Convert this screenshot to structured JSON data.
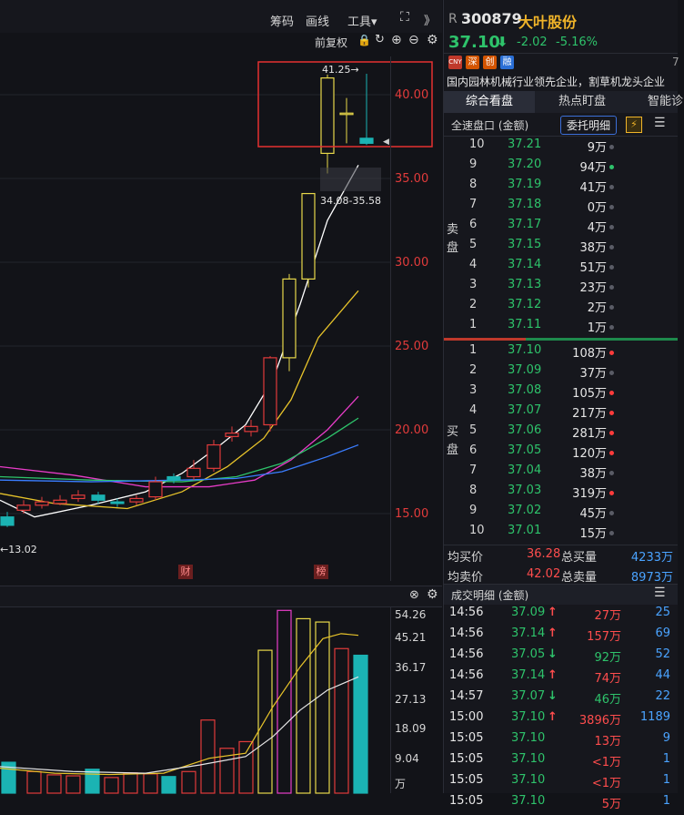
{
  "toolbar": {
    "chips_label": "筹码",
    "draw_label": "画线",
    "tools_label": "工具▾",
    "fullscreen_icon": "expand-icon",
    "collapse_label": "》",
    "adjust_label": "前复权"
  },
  "chart": {
    "price_ticks": [
      "40.00",
      "35.00",
      "30.00",
      "25.00",
      "20.00",
      "15.00"
    ],
    "high_label": "41.25→",
    "range_label": "34.08-35.58",
    "low_label": "←13.02",
    "markers": {
      "fin": "财",
      "list": "榜"
    },
    "colors": {
      "up": "#e8d84a",
      "down": "#1bb3b3",
      "ma5": "#ffffff",
      "ma10": "#e8c42a",
      "ma20": "#e83cc8",
      "ma30": "#2ec36b",
      "ma60": "#3a7dff"
    }
  },
  "volume": {
    "ticks": [
      "54.26",
      "45.21",
      "36.17",
      "27.13",
      "18.09",
      "9.04",
      "万"
    ]
  },
  "stock": {
    "prefix": "R",
    "code": "300879",
    "name": "大叶股份",
    "price": "37.10",
    "change": "-2.02",
    "change_pct": "-5.16%",
    "badges": [
      "CNY",
      "深",
      "创",
      "融"
    ],
    "desc": "国内园林机械行业领先企业，割草机龙头企业",
    "more": "7"
  },
  "tabs": [
    "综合看盘",
    "热点盯盘",
    "智能诊"
  ],
  "orderbook": {
    "title": "全速盘口 (金额)",
    "detail_btn": "委托明细",
    "sell_label_1": "卖",
    "sell_label_2": "盘",
    "buy_label_1": "买",
    "buy_label_2": "盘",
    "sells": [
      {
        "lvl": "10",
        "price": "37.21",
        "vol": "9万",
        "dot": "grey"
      },
      {
        "lvl": "9",
        "price": "37.20",
        "vol": "94万",
        "dot": "green"
      },
      {
        "lvl": "8",
        "price": "37.19",
        "vol": "41万",
        "dot": "grey"
      },
      {
        "lvl": "7",
        "price": "37.18",
        "vol": "0万",
        "dot": "grey"
      },
      {
        "lvl": "6",
        "price": "37.17",
        "vol": "4万",
        "dot": "grey"
      },
      {
        "lvl": "5",
        "price": "37.15",
        "vol": "38万",
        "dot": "grey"
      },
      {
        "lvl": "4",
        "price": "37.14",
        "vol": "51万",
        "dot": "grey"
      },
      {
        "lvl": "3",
        "price": "37.13",
        "vol": "23万",
        "dot": "grey"
      },
      {
        "lvl": "2",
        "price": "37.12",
        "vol": "2万",
        "dot": "grey"
      },
      {
        "lvl": "1",
        "price": "37.11",
        "vol": "1万",
        "dot": "grey"
      }
    ],
    "buys": [
      {
        "lvl": "1",
        "price": "37.10",
        "vol": "108万",
        "dot": "red"
      },
      {
        "lvl": "2",
        "price": "37.09",
        "vol": "37万",
        "dot": "grey"
      },
      {
        "lvl": "3",
        "price": "37.08",
        "vol": "105万",
        "dot": "red"
      },
      {
        "lvl": "4",
        "price": "37.07",
        "vol": "217万",
        "dot": "red"
      },
      {
        "lvl": "5",
        "price": "37.06",
        "vol": "281万",
        "dot": "red"
      },
      {
        "lvl": "6",
        "price": "37.05",
        "vol": "120万",
        "dot": "red"
      },
      {
        "lvl": "7",
        "price": "37.04",
        "vol": "38万",
        "dot": "grey"
      },
      {
        "lvl": "8",
        "price": "37.03",
        "vol": "319万",
        "dot": "red"
      },
      {
        "lvl": "9",
        "price": "37.02",
        "vol": "45万",
        "dot": "grey"
      },
      {
        "lvl": "10",
        "price": "37.01",
        "vol": "15万",
        "dot": "grey"
      }
    ],
    "avg_buy_label": "均买价",
    "avg_buy": "36.28",
    "total_buy_label": "总买量",
    "total_buy": "4233万",
    "avg_sell_label": "均卖价",
    "avg_sell": "42.02",
    "total_sell_label": "总卖量",
    "total_sell": "8973万"
  },
  "trades": {
    "title": "成交明细 (金额)",
    "rows": [
      {
        "time": "14:56",
        "price": "37.09",
        "dir": "up",
        "amt": "27万",
        "amt_color": "red",
        "count": "25"
      },
      {
        "time": "14:56",
        "price": "37.14",
        "dir": "up",
        "amt": "157万",
        "amt_color": "red",
        "count": "69"
      },
      {
        "time": "14:56",
        "price": "37.05",
        "dir": "down",
        "amt": "92万",
        "amt_color": "green",
        "count": "52"
      },
      {
        "time": "14:56",
        "price": "37.14",
        "dir": "up",
        "amt": "74万",
        "amt_color": "red",
        "count": "44"
      },
      {
        "time": "14:57",
        "price": "37.07",
        "dir": "down",
        "amt": "46万",
        "amt_color": "green",
        "count": "22"
      },
      {
        "time": "15:00",
        "price": "37.10",
        "dir": "up",
        "amt": "3896万",
        "amt_color": "red",
        "count": "1189"
      },
      {
        "time": "15:05",
        "price": "37.10",
        "dir": "",
        "amt": "13万",
        "amt_color": "red",
        "count": "9"
      },
      {
        "time": "15:05",
        "price": "37.10",
        "dir": "",
        "amt": "<1万",
        "amt_color": "red",
        "count": "1"
      },
      {
        "time": "15:05",
        "price": "37.10",
        "dir": "",
        "amt": "<1万",
        "amt_color": "red",
        "count": "1"
      },
      {
        "time": "15:05",
        "price": "37.10",
        "dir": "",
        "amt": "5万",
        "amt_color": "red",
        "count": "1"
      }
    ]
  }
}
